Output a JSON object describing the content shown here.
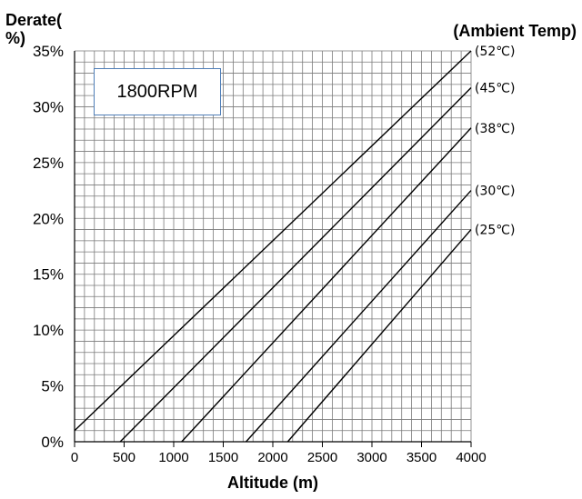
{
  "chart_data": {
    "type": "line",
    "annotation": "1800RPM",
    "ylabel": "Derate(%)",
    "xlabel": "Altitude (m)",
    "legend_title": "(Ambient Temp)",
    "xlim": [
      0,
      4000
    ],
    "ylim": [
      0,
      35
    ],
    "x_ticks": [
      0,
      500,
      1000,
      1500,
      2000,
      2500,
      3000,
      3500,
      4000
    ],
    "x_tick_labels": [
      "0",
      "500",
      "1000",
      "1500",
      "2000",
      "2500",
      "3000",
      "3500",
      "4000"
    ],
    "y_ticks": [
      0,
      5,
      10,
      15,
      20,
      25,
      30,
      35
    ],
    "y_tick_labels": [
      "0%",
      "5%",
      "10%",
      "15%",
      "20%",
      "25%",
      "30%",
      "35%"
    ],
    "grid": true,
    "grid_minor_x": 100,
    "grid_minor_y": 1,
    "series": [
      {
        "name": "(52℃)",
        "x": [
          0,
          4000
        ],
        "y": [
          1,
          35
        ]
      },
      {
        "name": "(45℃)",
        "x": [
          460,
          4000
        ],
        "y": [
          0,
          31.7
        ]
      },
      {
        "name": "(38℃)",
        "x": [
          1080,
          4000
        ],
        "y": [
          0,
          28.1
        ]
      },
      {
        "name": "(30℃)",
        "x": [
          1730,
          4000
        ],
        "y": [
          0,
          22.5
        ]
      },
      {
        "name": "(25℃)",
        "x": [
          2150,
          4000
        ],
        "y": [
          0,
          19
        ]
      }
    ],
    "colors": {
      "line": "#000000",
      "grid": "#7a7a7a",
      "box_border": "#4f7fb8"
    }
  }
}
